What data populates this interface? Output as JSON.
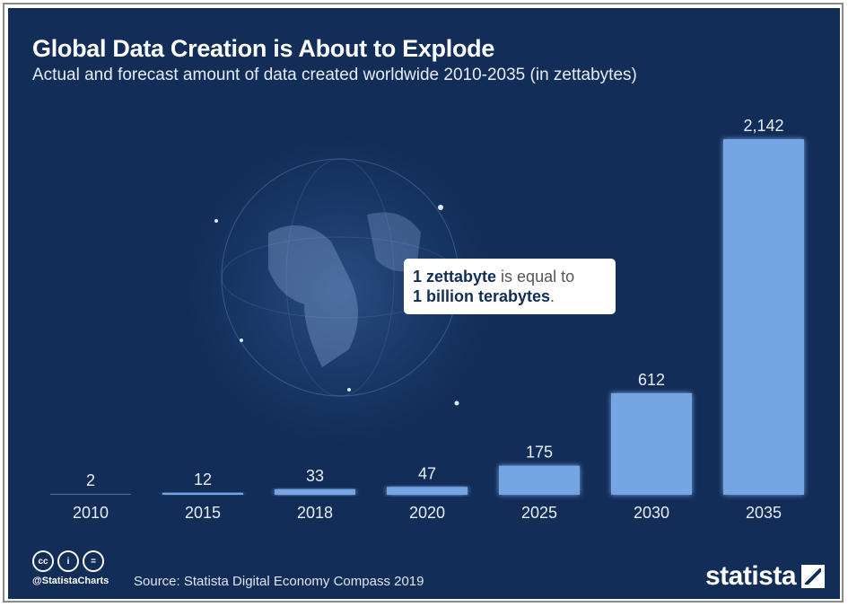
{
  "header": {
    "title": "Global Data Creation is About to Explode",
    "subtitle": "Actual and forecast amount of data created worldwide 2010-2035 (in zettabytes)"
  },
  "note": {
    "bold1": "1 zettabyte",
    "text1": " is equal to",
    "bold2": "1 billion terabytes",
    "text2": "."
  },
  "footer": {
    "handle": "@StatistaCharts",
    "source": "Source: Statista Digital Economy Compass 2019",
    "brand": "statista",
    "license_icons": [
      "cc",
      "i",
      "="
    ]
  },
  "colors": {
    "background": "#122d57",
    "bar": "#75a5e3",
    "text": "#ffffff"
  },
  "chart_data": {
    "type": "bar",
    "title": "Global Data Creation is About to Explode",
    "subtitle": "Actual and forecast amount of data created worldwide 2010-2035 (in zettabytes)",
    "xlabel": "",
    "ylabel": "Zettabytes",
    "categories": [
      "2010",
      "2015",
      "2018",
      "2020",
      "2025",
      "2030",
      "2035"
    ],
    "values": [
      2,
      12,
      33,
      47,
      175,
      612,
      2142
    ],
    "value_labels": [
      "2",
      "12",
      "33",
      "47",
      "175",
      "612",
      "2,142"
    ],
    "ylim": [
      0,
      2142
    ],
    "grid": false,
    "legend": "none"
  }
}
